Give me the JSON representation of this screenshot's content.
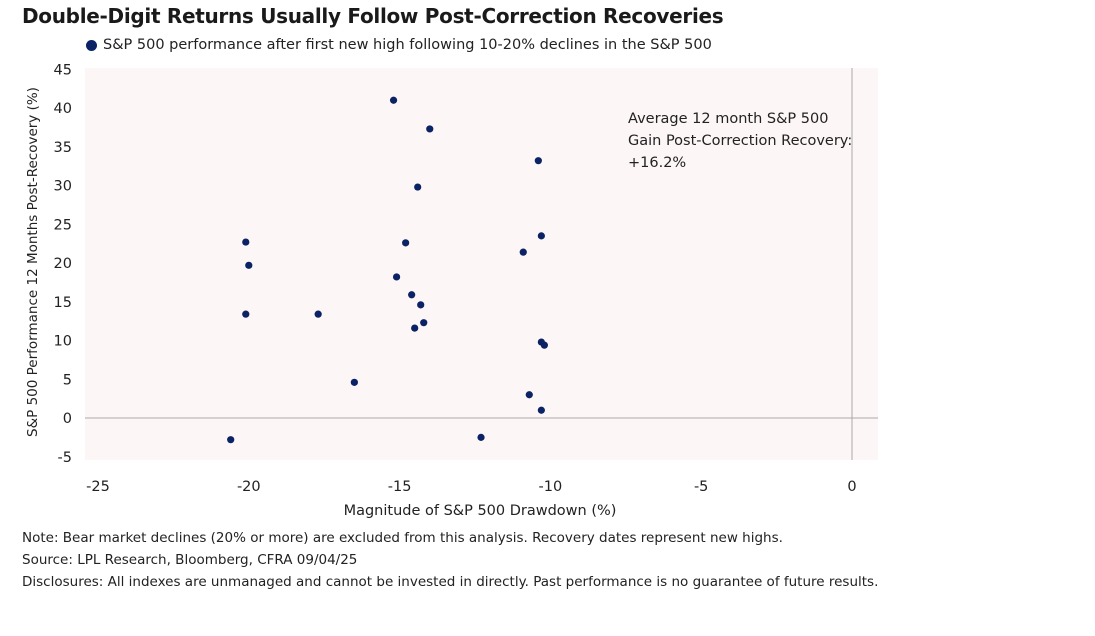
{
  "chart_data": {
    "type": "scatter",
    "title": "Double-Digit Returns Usually Follow Post-Correction Recoveries",
    "legend": "S&P 500 performance after first new high following 10-20% declines in the S&P 500",
    "legend_placement": "top",
    "xlabel": "Magnitude of S&P 500 Drawdown (%)",
    "ylabel": "S&P 500 Performance 12 Months Post-Recovery (%)",
    "xlim": [
      -25,
      0
    ],
    "ylim": [
      -5,
      45
    ],
    "xticks": [
      "-25",
      "-20",
      "-15",
      "-10",
      "-5",
      "0"
    ],
    "yticks": [
      "45",
      "40",
      "35",
      "30",
      "25",
      "20",
      "15",
      "10",
      "5",
      "0",
      "-5"
    ],
    "grid": false,
    "annotation": "Average 12 month S&P 500 Gain Post-Correction Recovery: +16.2%",
    "series": [
      {
        "color": "#0b2265",
        "points": [
          [
            -15.2,
            41.0
          ],
          [
            -14.0,
            37.3
          ],
          [
            -10.4,
            33.2
          ],
          [
            -14.4,
            29.8
          ],
          [
            -20.1,
            22.7
          ],
          [
            -14.8,
            22.6
          ],
          [
            -10.3,
            23.5
          ],
          [
            -10.9,
            21.4
          ],
          [
            -20.0,
            19.7
          ],
          [
            -15.1,
            18.2
          ],
          [
            -14.6,
            15.9
          ],
          [
            -14.3,
            14.6
          ],
          [
            -20.1,
            13.4
          ],
          [
            -17.7,
            13.4
          ],
          [
            -14.2,
            12.3
          ],
          [
            -14.5,
            11.6
          ],
          [
            -10.3,
            9.8
          ],
          [
            -10.2,
            9.4
          ],
          [
            -16.5,
            4.6
          ],
          [
            -10.7,
            3.0
          ],
          [
            -10.3,
            1.0
          ],
          [
            -20.6,
            -2.8
          ],
          [
            -12.3,
            -2.5
          ]
        ]
      }
    ]
  },
  "notes": {
    "note": "Note: Bear market declines (20% or more) are excluded from this analysis. Recovery dates represent new highs.",
    "source": "Source: LPL Research, Bloomberg, CFRA 09/04/25",
    "disclosures": "Disclosures: All indexes are unmanaged and cannot be invested in directly. Past performance is no guarantee of future results."
  }
}
